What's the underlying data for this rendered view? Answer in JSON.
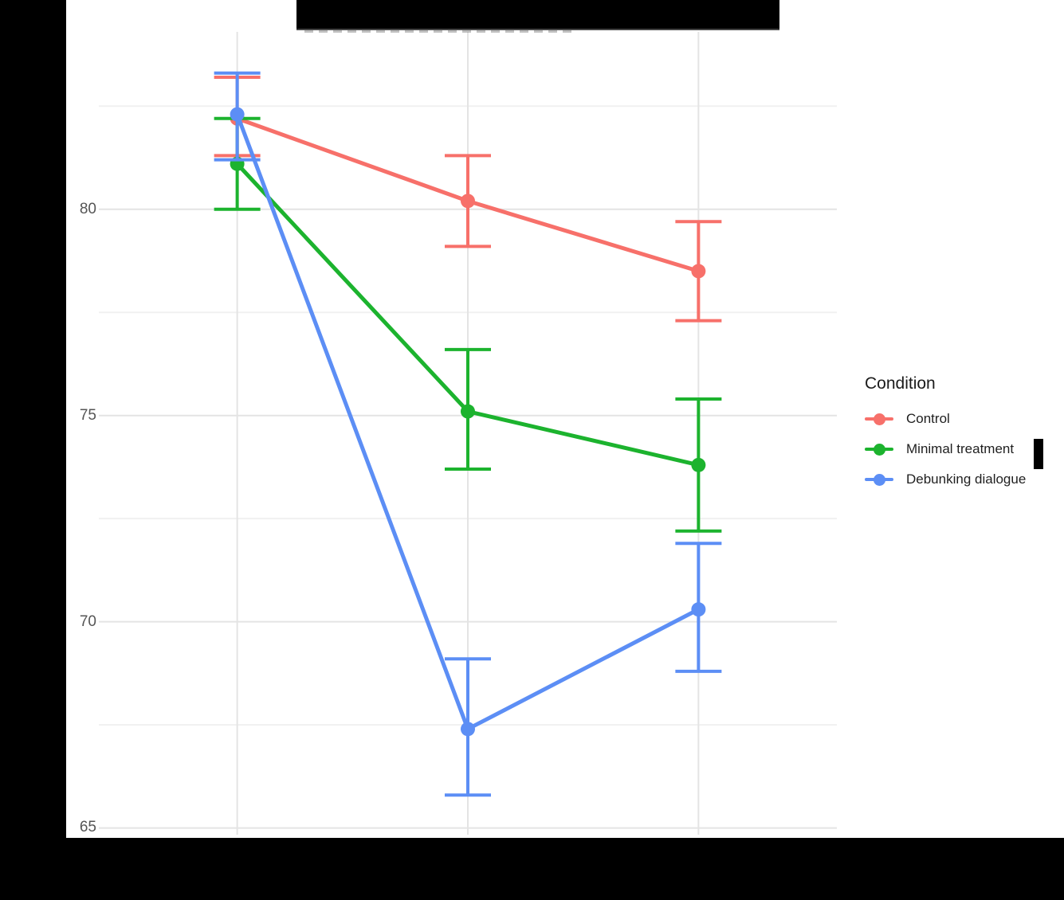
{
  "title": "",
  "redactions": {
    "title_bar": "black bar covering chart title",
    "y_axis_label_bar": "black bar covering rotated y-axis label (left edge)",
    "x_axis_labels_bar": "black bar covering x tick labels and x-axis title (bottom)",
    "legend_label_fragment": "small black bar after 'Minimal treatment' legend label"
  },
  "y_axis": {
    "tick_labels": [
      "80",
      "75",
      "70",
      "65"
    ]
  },
  "legend": {
    "title": "Condition",
    "items": [
      {
        "label": "Control",
        "color": "#F7706A"
      },
      {
        "label": "Minimal treatment",
        "color": "#1CB32E"
      },
      {
        "label": "Debunking dialogue",
        "color": "#5C8EF5"
      }
    ]
  },
  "colors": {
    "grid_major": "#E4E4E4",
    "grid_minor": "#F1F1F1",
    "tick_label": "#555555",
    "redaction": "#000000",
    "background": "#FFFFFF"
  },
  "chart_data": {
    "type": "line",
    "title": "",
    "xlabel": "",
    "ylabel": "",
    "num_x_points": 3,
    "x_tick_labels_visible": false,
    "yticks": [
      65,
      70,
      75,
      80
    ],
    "yticks_minor": [
      67.5,
      72.5,
      77.5,
      82.5
    ],
    "ylim": [
      64.8,
      84.3
    ],
    "grid": true,
    "legend_position": "right",
    "error_bars": "95% CI, capped",
    "series": [
      {
        "name": "Control",
        "color": "#F7706A",
        "values": [
          82.2,
          80.2,
          78.5
        ],
        "ci_lower": [
          81.3,
          79.1,
          77.3
        ],
        "ci_upper": [
          83.2,
          81.3,
          79.7
        ]
      },
      {
        "name": "Minimal treatment",
        "color": "#1CB32E",
        "values": [
          81.1,
          75.1,
          73.8
        ],
        "ci_lower": [
          80.0,
          73.7,
          72.2
        ],
        "ci_upper": [
          82.2,
          76.6,
          75.4
        ]
      },
      {
        "name": "Debunking dialogue",
        "color": "#5C8EF5",
        "values": [
          82.3,
          67.4,
          70.3
        ],
        "ci_lower": [
          81.2,
          65.8,
          68.8
        ],
        "ci_upper": [
          83.3,
          69.1,
          71.9
        ]
      }
    ]
  }
}
